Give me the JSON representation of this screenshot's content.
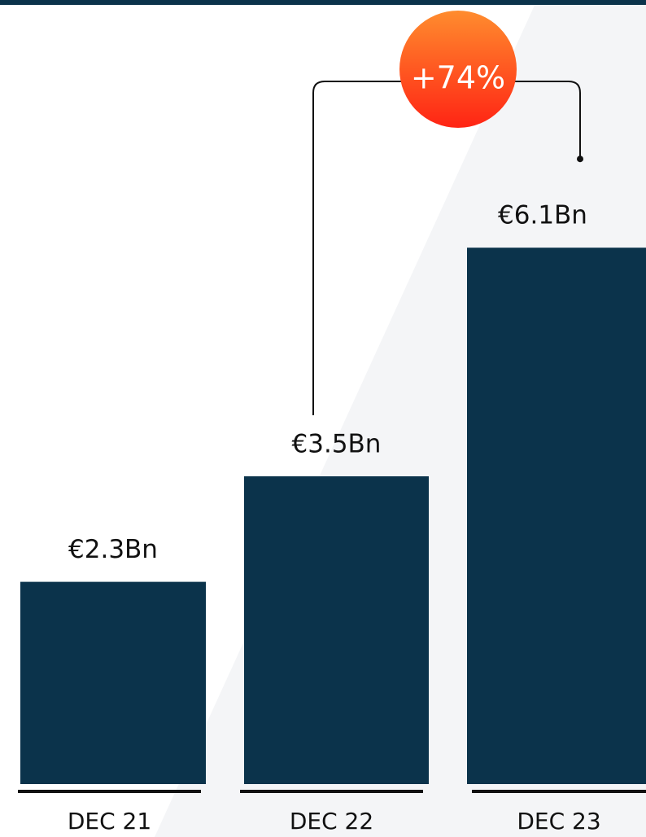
{
  "chart_data": {
    "type": "bar",
    "categories": [
      "DEC 21",
      "DEC 22",
      "DEC 23"
    ],
    "values": [
      2.3,
      3.5,
      6.1
    ],
    "value_labels": [
      "€2.3Bn",
      "€3.5Bn",
      "€6.1Bn"
    ],
    "color": "#0b334b",
    "annotation": "+74%"
  }
}
